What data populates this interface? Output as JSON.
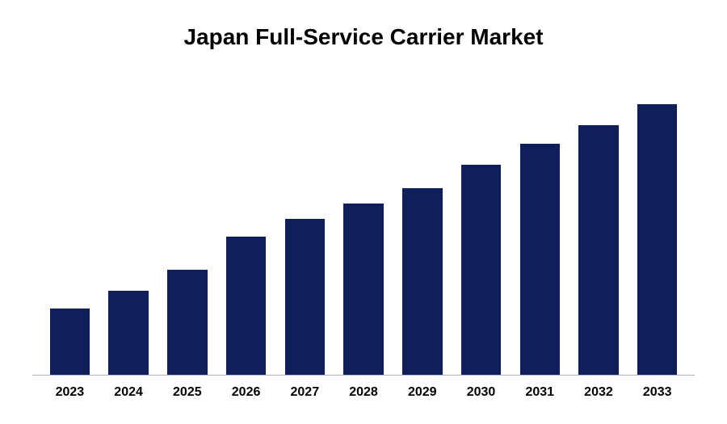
{
  "chart": {
    "type": "bar",
    "title": "Japan Full-Service Carrier Market",
    "title_fontsize": 28,
    "title_color": "#000000",
    "background_color": "#ffffff",
    "categories": [
      "2023",
      "2024",
      "2025",
      "2026",
      "2027",
      "2028",
      "2029",
      "2030",
      "2031",
      "2032",
      "2033"
    ],
    "values": [
      22,
      28,
      35,
      46,
      52,
      57,
      62,
      70,
      77,
      83,
      90
    ],
    "bar_color": "#0f1f5c",
    "axis_line_color": "#b0b0b0",
    "label_fontsize": 16,
    "label_color": "#000000",
    "label_fontweight": "bold",
    "ylim": [
      0,
      100
    ],
    "bar_width": 0.68
  }
}
